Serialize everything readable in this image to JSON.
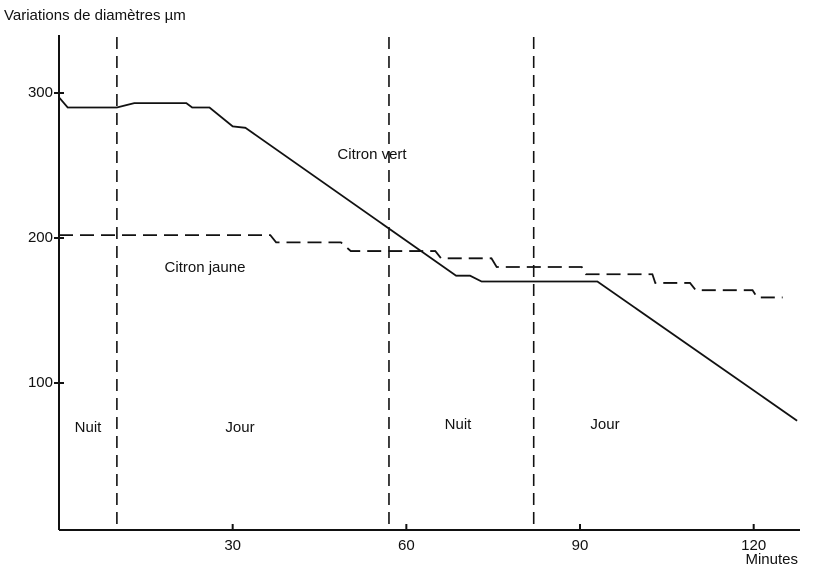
{
  "chart_data": {
    "type": "line",
    "title": "Variations de diamètres µm",
    "x_label": "Minutes",
    "xlim": [
      0,
      128
    ],
    "ylim": [
      0,
      340
    ],
    "xticks": [
      30,
      60,
      90,
      120
    ],
    "yticks": [
      100,
      200,
      300
    ],
    "vlines": [
      10,
      57,
      82
    ],
    "annotations": [
      "Nuit",
      "Jour",
      "Nuit",
      "Jour"
    ],
    "series": [
      {
        "name": "Citron vert",
        "color": "#111111",
        "dash": false,
        "x": [
          0,
          1.5,
          10,
          13,
          22,
          23,
          26,
          30,
          32.2,
          68.6,
          71,
          73,
          93,
          127.5
        ],
        "values": [
          297,
          290,
          290,
          293,
          293,
          290,
          290,
          277,
          276,
          174,
          174,
          170,
          170,
          74
        ]
      },
      {
        "name": "Citron jaune",
        "color": "#111111",
        "dash": true,
        "x": [
          0,
          36.5,
          37.5,
          48.7,
          50.4,
          65,
          66,
          74.7,
          75.6,
          90.3,
          91,
          102.5,
          103,
          109,
          110,
          119.8,
          120.6,
          125
        ],
        "values": [
          202,
          202,
          197,
          197,
          191,
          191,
          186,
          186,
          180,
          180,
          175,
          175,
          169,
          169,
          164,
          164,
          159,
          159
        ]
      }
    ]
  }
}
